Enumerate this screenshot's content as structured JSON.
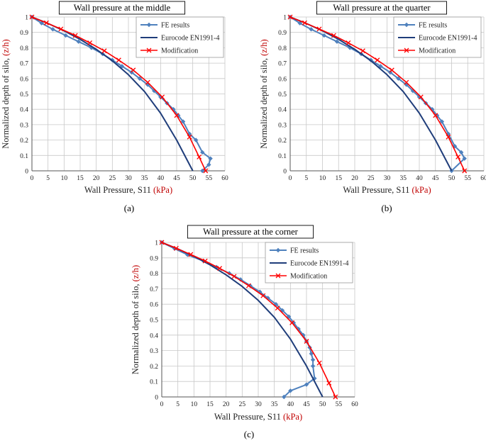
{
  "figure": {
    "panels": [
      {
        "title": "Wall pressure  at the middle",
        "caption": "(a)"
      },
      {
        "title": "Wall pressure  at the quarter",
        "caption": "(b)"
      },
      {
        "title": "Wall pressure  at the corner",
        "caption": "(c)"
      }
    ],
    "colors": {
      "fe": "#4f81bd",
      "eurocode": "#1f3d7a",
      "modification": "#ff0000",
      "grid": "#c8c8c8",
      "ylabel_unit": "#c00000",
      "xlabel_unit": "#c00000"
    },
    "icons": {
      "fe_marker": "diamond",
      "modification_marker": "x-cross"
    }
  },
  "chart_data": [
    {
      "type": "line",
      "title": "Wall pressure  at the middle",
      "xlabel": "Wall Pressure, S11",
      "xlabel_unit": "(kPa)",
      "ylabel": "Normalized depth of silo,",
      "ylabel_unit": "(z/h)",
      "xlim": [
        0,
        60
      ],
      "ylim": [
        0,
        1
      ],
      "xticks": [
        0,
        5,
        10,
        15,
        20,
        25,
        30,
        35,
        40,
        45,
        50,
        55,
        60
      ],
      "yticks": [
        0,
        0.1,
        0.2,
        0.3,
        0.4,
        0.5,
        0.6,
        0.7,
        0.8,
        0.9,
        1
      ],
      "grid": true,
      "legend_position": "top-right",
      "series": [
        {
          "name": "FE results",
          "marker": "diamond",
          "x": [
            0,
            3,
            6.5,
            10.5,
            14.5,
            18.5,
            22,
            25,
            28,
            31,
            33.5,
            36,
            38,
            40,
            42,
            44,
            45.5,
            47,
            49,
            51,
            53,
            55.5,
            55,
            53
          ],
          "y": [
            1,
            0.96,
            0.92,
            0.88,
            0.84,
            0.8,
            0.76,
            0.72,
            0.68,
            0.64,
            0.6,
            0.56,
            0.52,
            0.48,
            0.44,
            0.4,
            0.36,
            0.32,
            0.24,
            0.2,
            0.12,
            0.08,
            0.04,
            0
          ]
        },
        {
          "name": "Eurocode EN1991-4",
          "marker": "none",
          "x": [
            0,
            5,
            10,
            15,
            20,
            25,
            30,
            35,
            40,
            45,
            50
          ],
          "y": [
            1,
            0.958,
            0.91,
            0.855,
            0.79,
            0.715,
            0.625,
            0.515,
            0.375,
            0.2,
            0
          ]
        },
        {
          "name": "Modification",
          "marker": "x",
          "x": [
            0,
            4.5,
            9,
            13.5,
            18,
            22.5,
            27,
            31.5,
            36,
            40.5,
            45,
            49,
            52,
            54
          ],
          "y": [
            1,
            0.962,
            0.922,
            0.88,
            0.832,
            0.78,
            0.72,
            0.655,
            0.575,
            0.48,
            0.36,
            0.22,
            0.09,
            0
          ]
        }
      ]
    },
    {
      "type": "line",
      "title": "Wall pressure  at the quarter",
      "xlabel": "Wall Pressure, S11",
      "xlabel_unit": "(kPa)",
      "ylabel": "Normalized depth of silo,",
      "ylabel_unit": "(z/h)",
      "xlim": [
        0,
        60
      ],
      "ylim": [
        0,
        1
      ],
      "xticks": [
        0,
        5,
        10,
        15,
        20,
        25,
        30,
        35,
        40,
        45,
        50,
        55,
        60
      ],
      "yticks": [
        0,
        0.1,
        0.2,
        0.3,
        0.4,
        0.5,
        0.6,
        0.7,
        0.8,
        0.9,
        1
      ],
      "grid": true,
      "legend_position": "top-right",
      "series": [
        {
          "name": "FE results",
          "marker": "diamond",
          "x": [
            0,
            3,
            6.5,
            10.5,
            14.5,
            18.5,
            22,
            25,
            28,
            31,
            33.5,
            36,
            38,
            40,
            42,
            44,
            45.5,
            47,
            49,
            51,
            53,
            54,
            50
          ],
          "y": [
            1,
            0.96,
            0.92,
            0.88,
            0.84,
            0.8,
            0.76,
            0.72,
            0.68,
            0.64,
            0.6,
            0.56,
            0.52,
            0.48,
            0.44,
            0.4,
            0.36,
            0.32,
            0.24,
            0.16,
            0.12,
            0.08,
            0
          ]
        },
        {
          "name": "Eurocode EN1991-4",
          "marker": "none",
          "x": [
            0,
            5,
            10,
            15,
            20,
            25,
            30,
            35,
            40,
            45,
            50
          ],
          "y": [
            1,
            0.958,
            0.91,
            0.855,
            0.79,
            0.715,
            0.625,
            0.515,
            0.375,
            0.2,
            0
          ]
        },
        {
          "name": "Modification",
          "marker": "x",
          "x": [
            0,
            4.5,
            9,
            13.5,
            18,
            22.5,
            27,
            31.5,
            36,
            40.5,
            45,
            49,
            52,
            54
          ],
          "y": [
            1,
            0.962,
            0.922,
            0.88,
            0.832,
            0.78,
            0.72,
            0.655,
            0.575,
            0.48,
            0.36,
            0.22,
            0.09,
            0
          ]
        }
      ]
    },
    {
      "type": "line",
      "title": "Wall pressure  at the corner",
      "xlabel": "Wall Pressure, S11",
      "xlabel_unit": "(kPa)",
      "ylabel": "Normalized depth of silo,",
      "ylabel_unit": "(z/h)",
      "xlim": [
        0,
        60
      ],
      "ylim": [
        0,
        1
      ],
      "xticks": [
        0,
        5,
        10,
        15,
        20,
        25,
        30,
        35,
        40,
        45,
        50,
        55,
        60
      ],
      "yticks": [
        0,
        0.1,
        0.2,
        0.3,
        0.4,
        0.5,
        0.6,
        0.7,
        0.8,
        0.9,
        1
      ],
      "grid": true,
      "legend_position": "top-right",
      "series": [
        {
          "name": "FE results",
          "marker": "diamond",
          "x": [
            0,
            4,
            8,
            13,
            17,
            21,
            24.5,
            27.5,
            30.5,
            33,
            35.5,
            37.5,
            39.5,
            41,
            42.5,
            44,
            45,
            46,
            46.5,
            47,
            47,
            47.5,
            45,
            40,
            38
          ],
          "y": [
            1,
            0.96,
            0.92,
            0.88,
            0.84,
            0.8,
            0.76,
            0.72,
            0.68,
            0.64,
            0.6,
            0.56,
            0.52,
            0.48,
            0.44,
            0.4,
            0.36,
            0.32,
            0.28,
            0.24,
            0.2,
            0.12,
            0.08,
            0.04,
            0
          ]
        },
        {
          "name": "Eurocode EN1991-4",
          "marker": "none",
          "x": [
            0,
            5,
            10,
            15,
            20,
            25,
            30,
            35,
            40,
            45,
            50
          ],
          "y": [
            1,
            0.958,
            0.91,
            0.855,
            0.79,
            0.715,
            0.625,
            0.515,
            0.375,
            0.2,
            0
          ]
        },
        {
          "name": "Modification",
          "marker": "x",
          "x": [
            0,
            4.5,
            9,
            13.5,
            18,
            22.5,
            27,
            31.5,
            36,
            40.5,
            45,
            49,
            52,
            54
          ],
          "y": [
            1,
            0.962,
            0.922,
            0.88,
            0.832,
            0.78,
            0.72,
            0.655,
            0.575,
            0.48,
            0.36,
            0.22,
            0.09,
            0
          ]
        }
      ]
    }
  ]
}
